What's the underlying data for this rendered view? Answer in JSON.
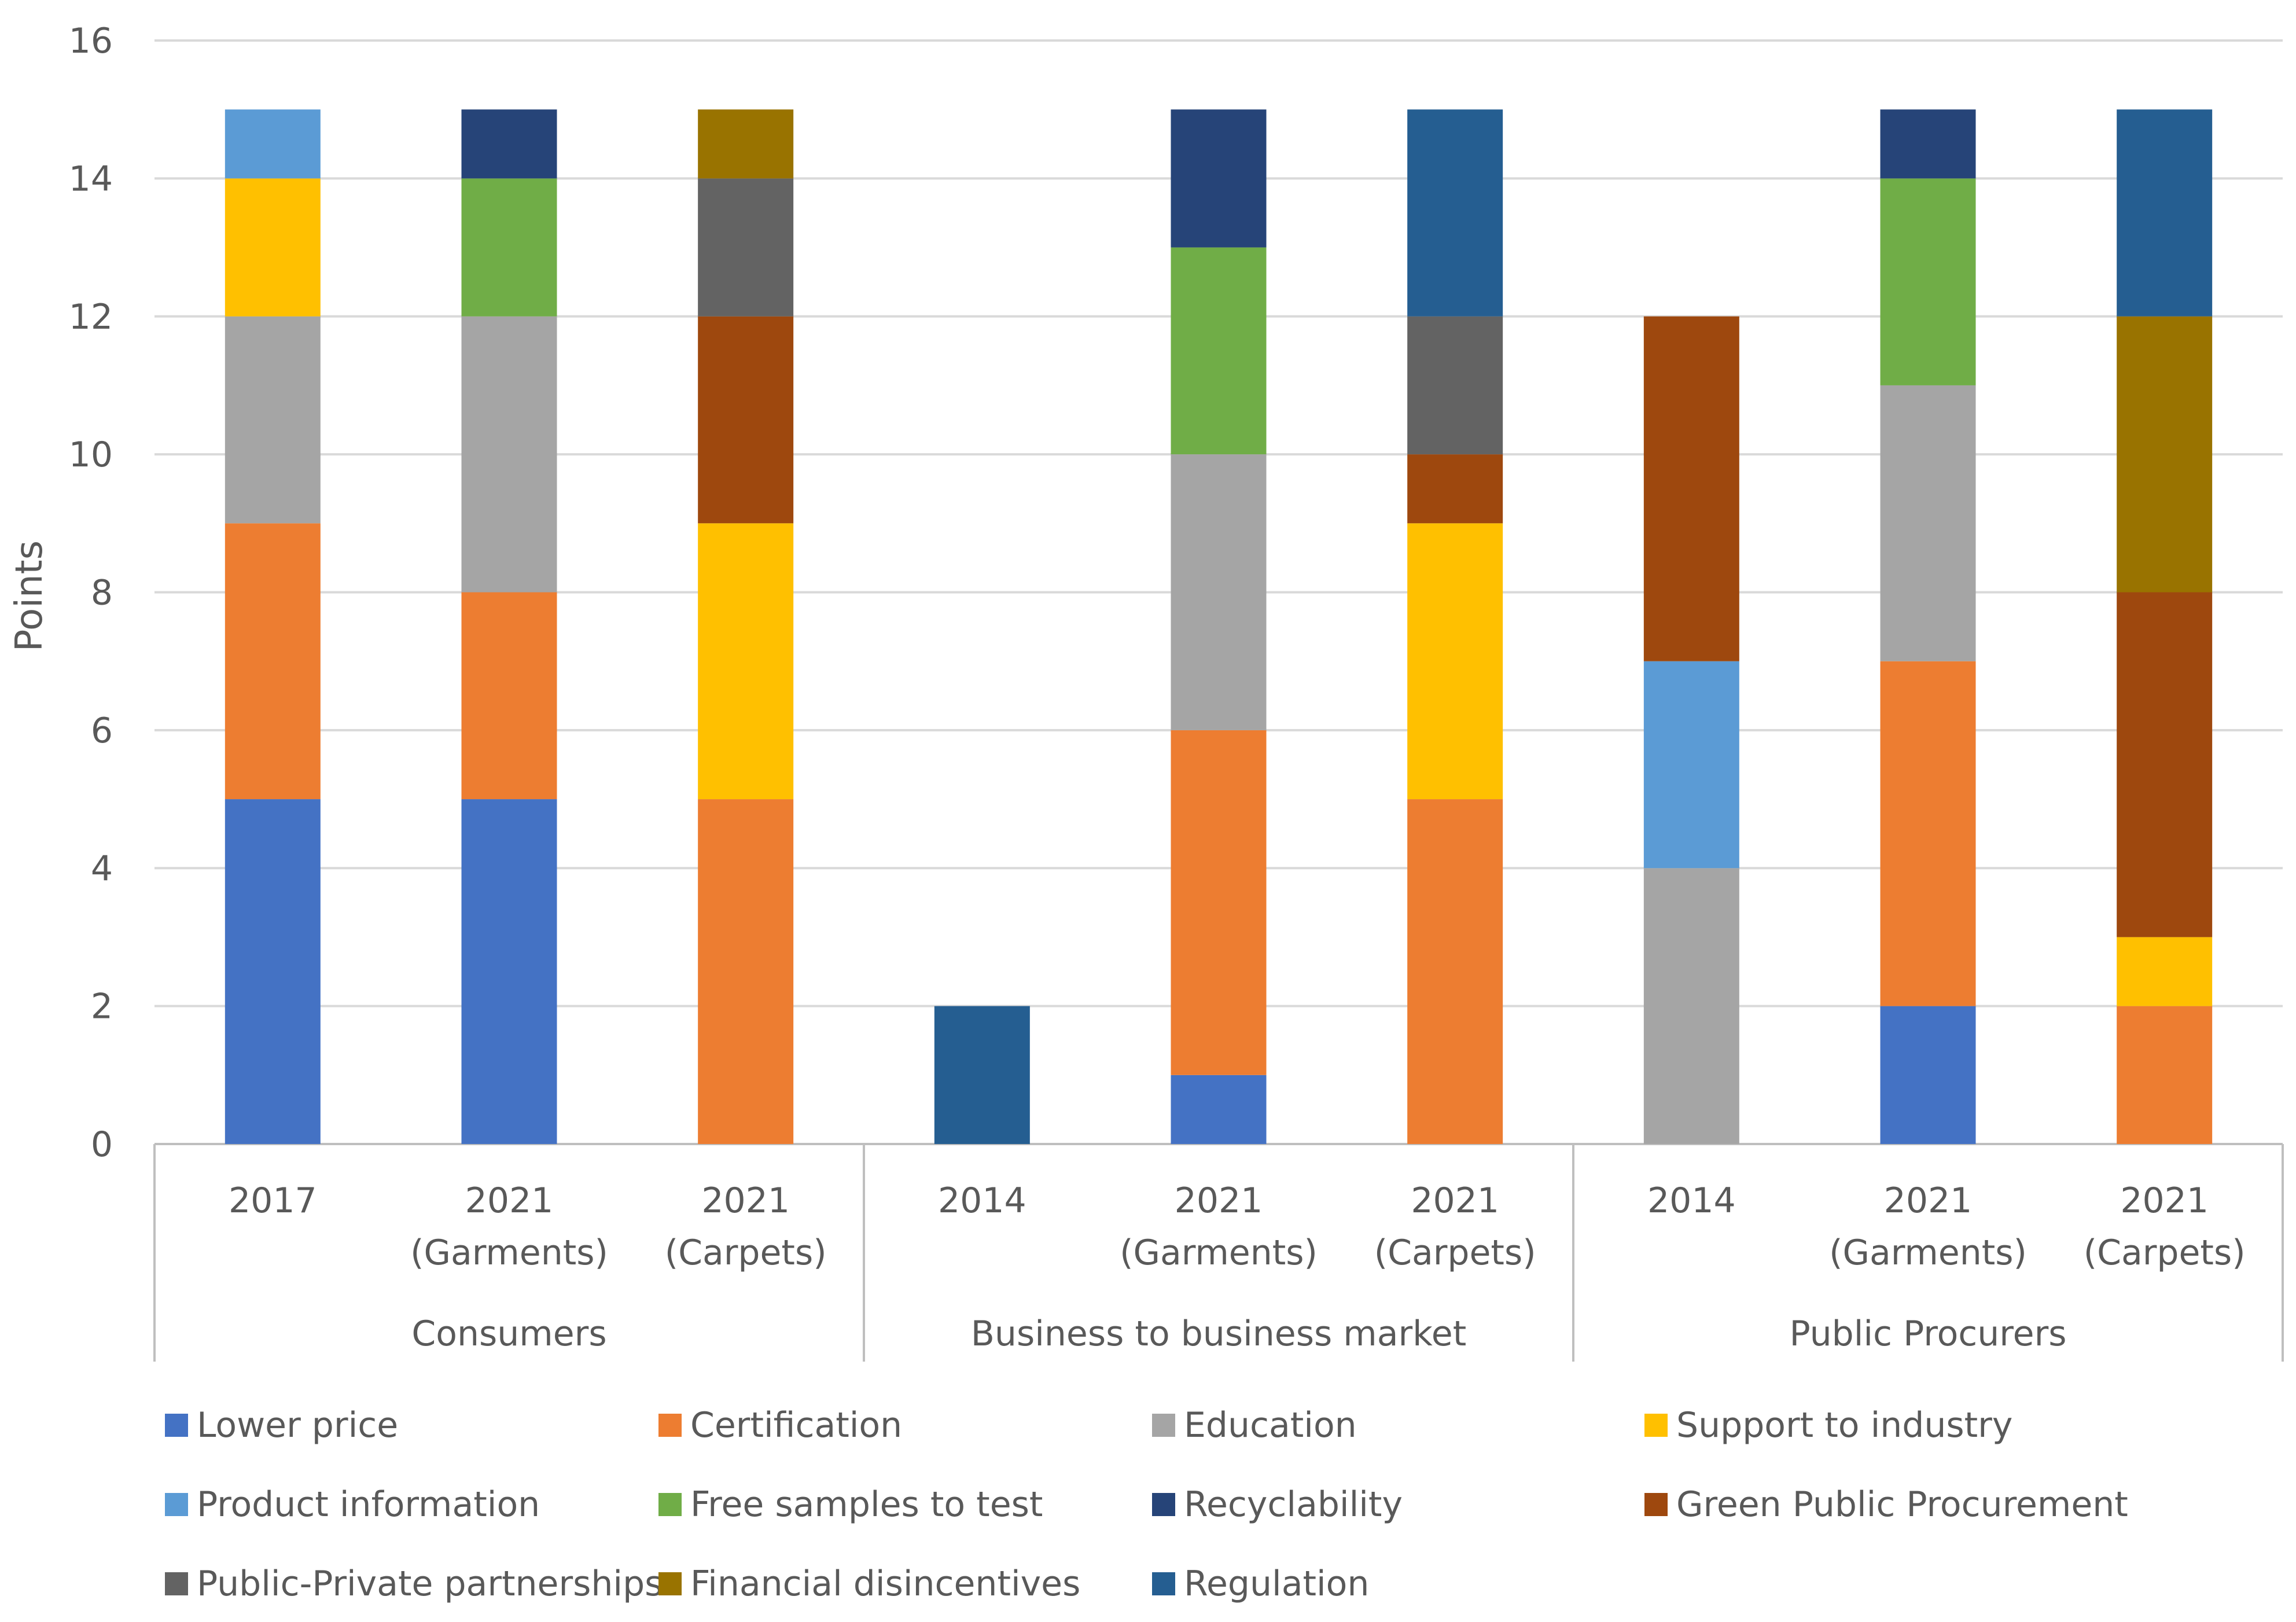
{
  "chart_data": {
    "type": "bar",
    "stacked": true,
    "ylabel": "Points",
    "ylim": [
      0,
      16
    ],
    "yticks": [
      0,
      2,
      4,
      6,
      8,
      10,
      12,
      14,
      16
    ],
    "grid": true,
    "legend_position": "bottom",
    "groups": [
      {
        "name": "Consumers",
        "categories": [
          [
            "2017"
          ],
          [
            "2021",
            "(Garments)"
          ],
          [
            "2021",
            "(Carpets)"
          ]
        ]
      },
      {
        "name": "Business to business market",
        "categories": [
          [
            "2014"
          ],
          [
            "2021",
            "(Garments)"
          ],
          [
            "2021",
            "(Carpets)"
          ]
        ]
      },
      {
        "name": "Public Procurers",
        "categories": [
          [
            "2014"
          ],
          [
            "2021",
            "(Garments)"
          ],
          [
            "2021",
            "(Carpets)"
          ]
        ]
      }
    ],
    "series": [
      {
        "name": "Lower price",
        "color": "#4472C4",
        "values": [
          5,
          5,
          0,
          0,
          1,
          0,
          0,
          2,
          0
        ]
      },
      {
        "name": "Certification",
        "color": "#ED7D31",
        "values": [
          4,
          3,
          5,
          0,
          5,
          5,
          0,
          5,
          2
        ]
      },
      {
        "name": "Education",
        "color": "#A5A5A5",
        "values": [
          3,
          4,
          0,
          0,
          4,
          0,
          4,
          4,
          0
        ]
      },
      {
        "name": "Support to industry",
        "color": "#FFC000",
        "values": [
          2,
          0,
          4,
          0,
          0,
          4,
          0,
          0,
          1
        ]
      },
      {
        "name": "Product information",
        "color": "#5B9BD5",
        "values": [
          1,
          0,
          0,
          0,
          0,
          0,
          3,
          0,
          0
        ]
      },
      {
        "name": "Free samples to test",
        "color": "#70AD47",
        "values": [
          0,
          2,
          0,
          0,
          3,
          0,
          0,
          3,
          0
        ]
      },
      {
        "name": "Recyclability",
        "color": "#264478",
        "values": [
          0,
          1,
          0,
          0,
          2,
          0,
          0,
          1,
          0
        ]
      },
      {
        "name": "Green Public Procurement",
        "color": "#9E480E",
        "values": [
          0,
          0,
          3,
          0,
          0,
          1,
          5,
          0,
          5
        ]
      },
      {
        "name": "Public-Private partnerships",
        "color": "#636363",
        "values": [
          0,
          0,
          2,
          0,
          0,
          2,
          0,
          0,
          0
        ]
      },
      {
        "name": "Financial disincentives",
        "color": "#997300",
        "values": [
          0,
          0,
          1,
          0,
          0,
          0,
          0,
          0,
          4
        ]
      },
      {
        "name": "Regulation",
        "color": "#255E91",
        "values": [
          0,
          0,
          0,
          2,
          0,
          3,
          0,
          0,
          3
        ]
      }
    ]
  }
}
